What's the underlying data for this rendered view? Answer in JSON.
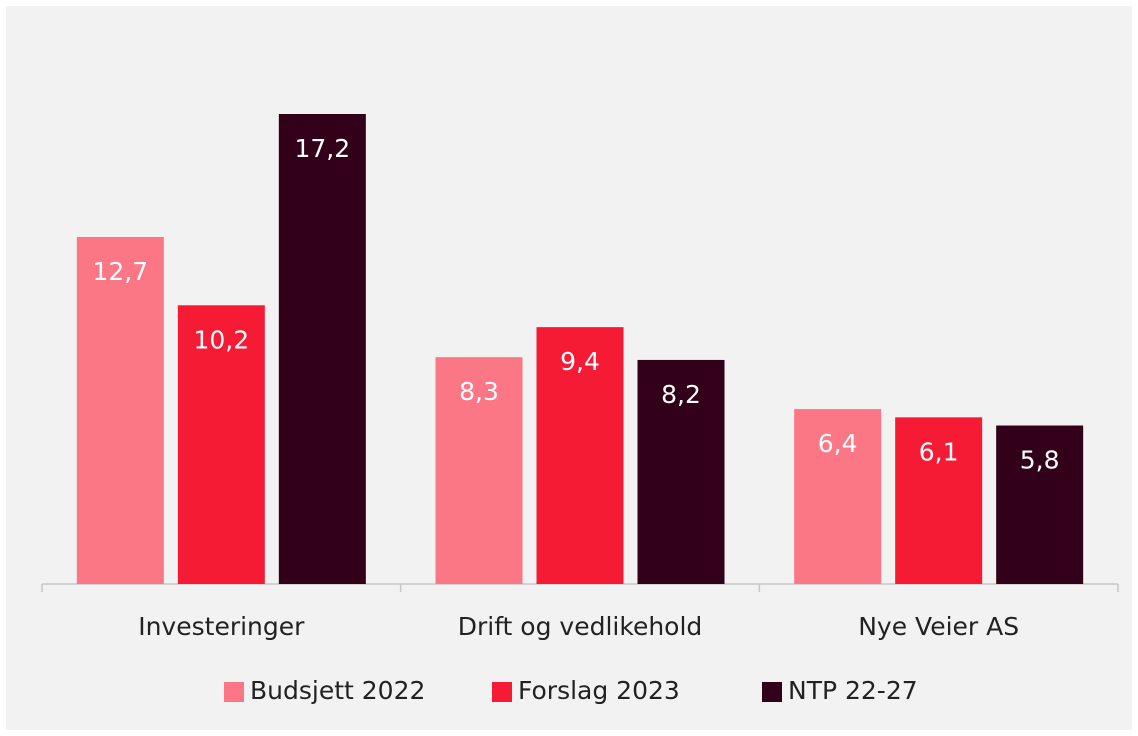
{
  "chart_data": {
    "type": "bar",
    "categories": [
      "Investeringer",
      "Drift og vedlikehold",
      "Nye Veier AS"
    ],
    "series": [
      {
        "name": "Budsjett 2022",
        "color": "#fb7785",
        "values": [
          12.7,
          8.3,
          6.4
        ],
        "value_labels": [
          "12,7",
          "8,3",
          "6,4"
        ]
      },
      {
        "name": "Forslag 2023",
        "color": "#f61b35",
        "values": [
          10.2,
          9.4,
          6.1
        ],
        "value_labels": [
          "10,2",
          "9,4",
          "6,1"
        ]
      },
      {
        "name": "NTP 22-27",
        "color": "#33001a",
        "values": [
          17.2,
          8.2,
          5.8
        ],
        "value_labels": [
          "17,2",
          "8,2",
          "5,8"
        ]
      }
    ],
    "legend": "bottom"
  }
}
